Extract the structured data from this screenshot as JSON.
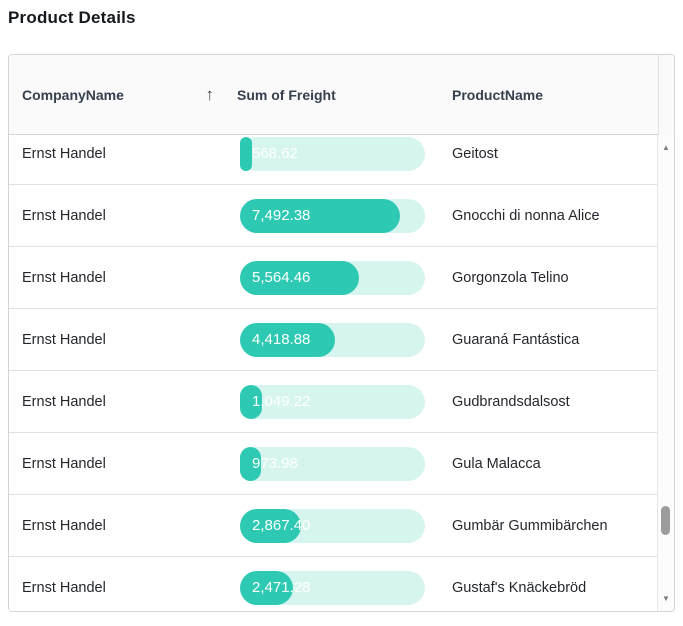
{
  "title": "Product Details",
  "grid": {
    "columns": [
      {
        "label": "CompanyName",
        "sorted": "ascending"
      },
      {
        "label": "Sum of Freight"
      },
      {
        "label": "ProductName"
      }
    ],
    "sort_icon": "↑",
    "rows": [
      {
        "company": "Ernst Handel",
        "freight": "568.62",
        "percent": 6.6,
        "product": "Geitost"
      },
      {
        "company": "Ernst Handel",
        "freight": "7,492.38",
        "percent": 86.6,
        "product": "Gnocchi di nonna Alice"
      },
      {
        "company": "Ernst Handel",
        "freight": "5,564.46",
        "percent": 64.3,
        "product": "Gorgonzola Telino"
      },
      {
        "company": "Ernst Handel",
        "freight": "4,418.88",
        "percent": 51.1,
        "product": "Guaraná Fantástica"
      },
      {
        "company": "Ernst Handel",
        "freight": "1,049.22",
        "percent": 12.1,
        "product": "Gudbrandsdalsost"
      },
      {
        "company": "Ernst Handel",
        "freight": "973.98",
        "percent": 11.3,
        "product": "Gula Malacca"
      },
      {
        "company": "Ernst Handel",
        "freight": "2,867.40",
        "percent": 33.1,
        "product": "Gumbär Gummibärchen"
      },
      {
        "company": "Ernst Handel",
        "freight": "2,471.28",
        "percent": 28.6,
        "product": "Gustaf's Knäckebröd"
      }
    ]
  },
  "colors": {
    "bar_fill": "#2dc9b2",
    "bar_track": "#d6f5ef",
    "header_bg": "#fafafa",
    "border": "#d5d5d5"
  },
  "scrollbar": {
    "up_icon": "▲",
    "down_icon": "▼"
  }
}
